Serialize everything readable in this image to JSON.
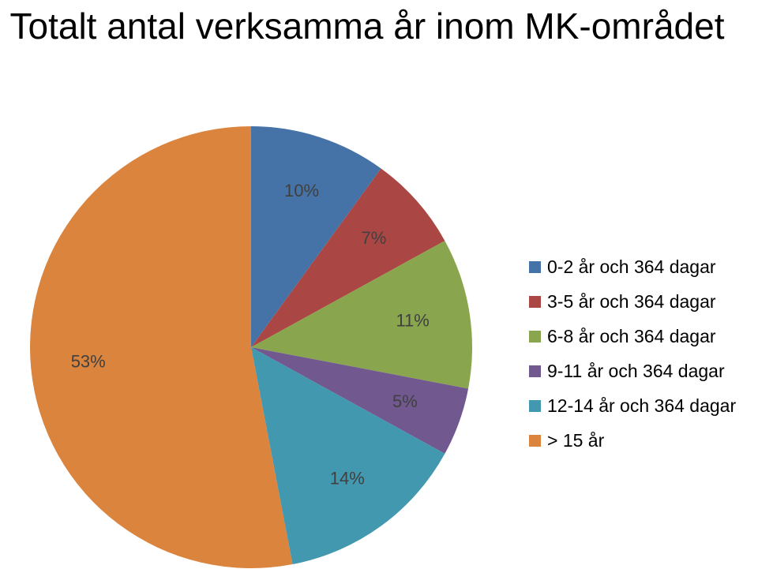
{
  "chart_data": {
    "type": "pie",
    "title": "Totalt antal verksamma år inom MK-området",
    "legend_position": "right",
    "slices": [
      {
        "label": "0-2 år och 364 dagar",
        "value": 10,
        "value_label": "10%",
        "color": "#4572A7"
      },
      {
        "label": "3-5 år och 364 dagar",
        "value": 7,
        "value_label": "7%",
        "color": "#AA4643"
      },
      {
        "label": "6-8 år och 364 dagar",
        "value": 11,
        "value_label": "11%",
        "color": "#89A54E"
      },
      {
        "label": "9-11 år och 364 dagar",
        "value": 5,
        "value_label": "5%",
        "color": "#71588F"
      },
      {
        "label": "12-14 år och 364 dagar",
        "value": 14,
        "value_label": "14%",
        "color": "#4198AF"
      },
      {
        "label": "> 15 år",
        "value": 53,
        "value_label": "53%",
        "color": "#DB843D"
      }
    ]
  }
}
